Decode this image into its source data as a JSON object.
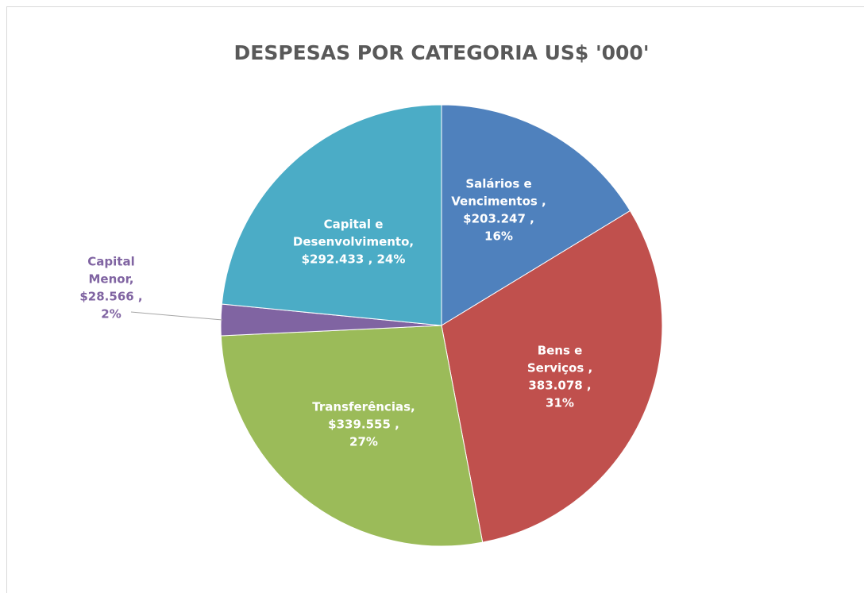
{
  "chart_data": {
    "type": "pie",
    "title": "DESPESAS POR CATEGORIA US$ '000'",
    "values": [
      203247,
      383078,
      339555,
      28566,
      292433
    ],
    "colors": [
      "#4f81bd",
      "#c0504d",
      "#9bbb59",
      "#8064a2",
      "#4bacc6"
    ],
    "labels": [
      [
        "Salários e",
        "Vencimentos ,",
        "$203.247 ,",
        "16%"
      ],
      [
        "Bens e",
        "Serviços ,",
        "383.078 ,",
        "31%"
      ],
      [
        "Transferências,",
        "$339.555 ,",
        "27%"
      ],
      [
        "Capital",
        "Menor,",
        "$28.566 ,",
        "2%"
      ],
      [
        "Capital e",
        "Desenvolvimento,",
        "$292.433 , 24%"
      ]
    ]
  }
}
